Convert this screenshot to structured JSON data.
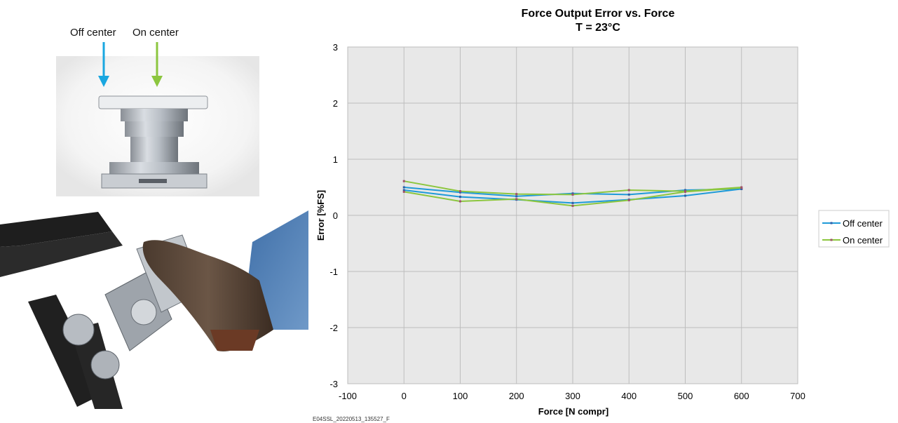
{
  "photo": {
    "arrow_labels": [
      "Off center",
      "On center"
    ],
    "arrow_colors": {
      "off_center": "#1aa7e0",
      "on_center": "#8cc63f"
    }
  },
  "chart_data": {
    "type": "line",
    "title": "Force Output Error vs. Force",
    "subtitle": "T = 23°C",
    "xlabel": "Force  [N  compr]",
    "ylabel": "Error  [%FS]",
    "xlim": [
      -100,
      700
    ],
    "ylim": [
      -3,
      3
    ],
    "xticks": [
      -100,
      0,
      100,
      200,
      300,
      400,
      500,
      600,
      700
    ],
    "yticks": [
      -3,
      -2,
      -1,
      0,
      1,
      2,
      3
    ],
    "grid": true,
    "plot_background": "#e8e8e8",
    "legend_position": "right",
    "series": [
      {
        "name": "Off center",
        "color": "#1f9ad8",
        "marker_color": "#2e5fa8",
        "x": [
          0,
          100,
          200,
          300,
          400,
          500,
          600
        ],
        "y": [
          0.5,
          0.41,
          0.34,
          0.39,
          0.37,
          0.45,
          0.47
        ]
      },
      {
        "name": "Off center",
        "color": "#1f9ad8",
        "marker_color": "#2e5fa8",
        "x": [
          0,
          100,
          200,
          300,
          400,
          500,
          600
        ],
        "y": [
          0.45,
          0.33,
          0.28,
          0.22,
          0.28,
          0.35,
          0.47
        ]
      },
      {
        "name": "On center",
        "color": "#8cc63f",
        "marker_color": "#a0506a",
        "x": [
          0,
          100,
          200,
          300,
          400,
          500,
          600
        ],
        "y": [
          0.61,
          0.43,
          0.38,
          0.37,
          0.45,
          0.43,
          0.5
        ]
      },
      {
        "name": "On center",
        "color": "#8cc63f",
        "marker_color": "#a0506a",
        "x": [
          0,
          100,
          200,
          300,
          400,
          500,
          600
        ],
        "y": [
          0.42,
          0.25,
          0.29,
          0.17,
          0.27,
          0.42,
          0.49
        ]
      }
    ],
    "legend": [
      {
        "name": "Off center",
        "color": "#1f9ad8"
      },
      {
        "name": "On center",
        "color": "#8cc63f"
      }
    ],
    "footer": "E04SSL_20220513_135527_F"
  }
}
